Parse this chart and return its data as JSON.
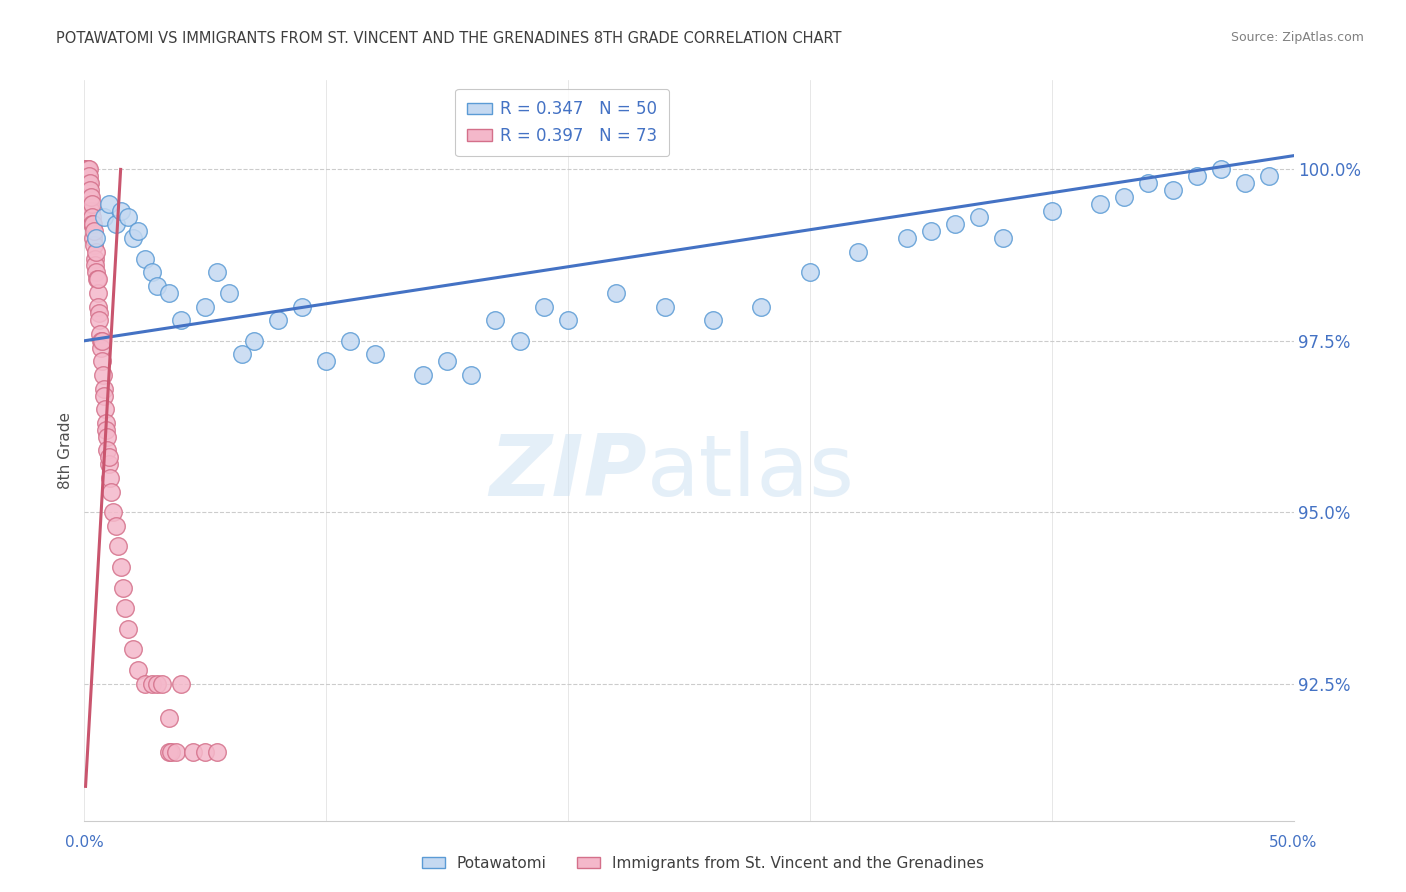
{
  "title": "POTAWATOMI VS IMMIGRANTS FROM ST. VINCENT AND THE GRENADINES 8TH GRADE CORRELATION CHART",
  "source": "Source: ZipAtlas.com",
  "ylabel": "8th Grade",
  "xlim": [
    0.0,
    50.0
  ],
  "ylim": [
    90.5,
    101.3
  ],
  "yticks": [
    92.5,
    95.0,
    97.5,
    100.0
  ],
  "ytick_labels": [
    "92.5%",
    "95.0%",
    "97.5%",
    "100.0%"
  ],
  "blue_color": "#c5d9f1",
  "blue_edge": "#5b9bd5",
  "pink_color": "#f4b8ca",
  "pink_edge": "#d4708a",
  "blue_line_color": "#4472c4",
  "pink_line_color": "#c9556e",
  "title_color": "#3f3f3f",
  "axis_label_color": "#4472c4",
  "source_color": "#808080",
  "blue_line_x0": 0.0,
  "blue_line_y0": 97.5,
  "blue_line_x1": 50.0,
  "blue_line_y1": 100.2,
  "pink_line_x0": 0.05,
  "pink_line_y0": 91.0,
  "pink_line_x1": 1.5,
  "pink_line_y1": 100.0,
  "blue_x": [
    0.5,
    0.8,
    1.0,
    1.3,
    1.5,
    1.8,
    2.0,
    2.2,
    2.5,
    2.8,
    3.0,
    3.5,
    4.0,
    5.0,
    5.5,
    6.0,
    7.0,
    8.0,
    9.0,
    10.0,
    11.0,
    12.0,
    14.0,
    15.0,
    17.0,
    18.0,
    19.0,
    20.0,
    22.0,
    24.0,
    30.0,
    32.0,
    34.0,
    36.0,
    37.0,
    38.0,
    40.0,
    42.0,
    43.0,
    44.0,
    45.0,
    46.0,
    47.0,
    48.0,
    49.0,
    35.0,
    26.0,
    28.0,
    16.0,
    6.5
  ],
  "blue_y": [
    99.0,
    99.3,
    99.5,
    99.2,
    99.4,
    99.3,
    99.0,
    99.1,
    98.7,
    98.5,
    98.3,
    98.2,
    97.8,
    98.0,
    98.5,
    98.2,
    97.5,
    97.8,
    98.0,
    97.2,
    97.5,
    97.3,
    97.0,
    97.2,
    97.8,
    97.5,
    98.0,
    97.8,
    98.2,
    98.0,
    98.5,
    98.8,
    99.0,
    99.2,
    99.3,
    99.0,
    99.4,
    99.5,
    99.6,
    99.8,
    99.7,
    99.9,
    100.0,
    99.8,
    99.9,
    99.1,
    97.8,
    98.0,
    97.0,
    97.3
  ],
  "pink_x": [
    0.05,
    0.08,
    0.1,
    0.1,
    0.12,
    0.12,
    0.15,
    0.15,
    0.18,
    0.18,
    0.2,
    0.2,
    0.22,
    0.22,
    0.25,
    0.25,
    0.28,
    0.28,
    0.3,
    0.3,
    0.32,
    0.35,
    0.35,
    0.38,
    0.4,
    0.42,
    0.45,
    0.48,
    0.5,
    0.52,
    0.55,
    0.55,
    0.58,
    0.6,
    0.62,
    0.65,
    0.68,
    0.7,
    0.72,
    0.75,
    0.78,
    0.8,
    0.82,
    0.85,
    0.88,
    0.9,
    0.92,
    0.95,
    1.0,
    1.0,
    1.05,
    1.1,
    1.2,
    1.3,
    1.4,
    1.5,
    1.6,
    1.7,
    1.8,
    2.0,
    2.2,
    2.5,
    2.8,
    3.0,
    3.2,
    3.5,
    3.6,
    3.8,
    4.0,
    4.5,
    5.0,
    5.5,
    3.5
  ],
  "pink_y": [
    100.0,
    100.0,
    100.0,
    99.8,
    99.9,
    100.0,
    100.0,
    99.7,
    99.8,
    100.0,
    99.8,
    99.9,
    99.6,
    99.8,
    99.5,
    99.7,
    99.4,
    99.6,
    99.5,
    99.3,
    99.2,
    99.0,
    99.2,
    98.9,
    99.1,
    98.7,
    98.6,
    98.8,
    98.5,
    98.4,
    98.2,
    98.4,
    98.0,
    97.9,
    97.8,
    97.6,
    97.5,
    97.4,
    97.5,
    97.2,
    97.0,
    96.8,
    96.7,
    96.5,
    96.3,
    96.2,
    96.1,
    95.9,
    95.7,
    95.8,
    95.5,
    95.3,
    95.0,
    94.8,
    94.5,
    94.2,
    93.9,
    93.6,
    93.3,
    93.0,
    92.7,
    92.5,
    92.5,
    92.5,
    92.5,
    91.5,
    91.5,
    91.5,
    92.5,
    91.5,
    91.5,
    91.5,
    92.0
  ]
}
